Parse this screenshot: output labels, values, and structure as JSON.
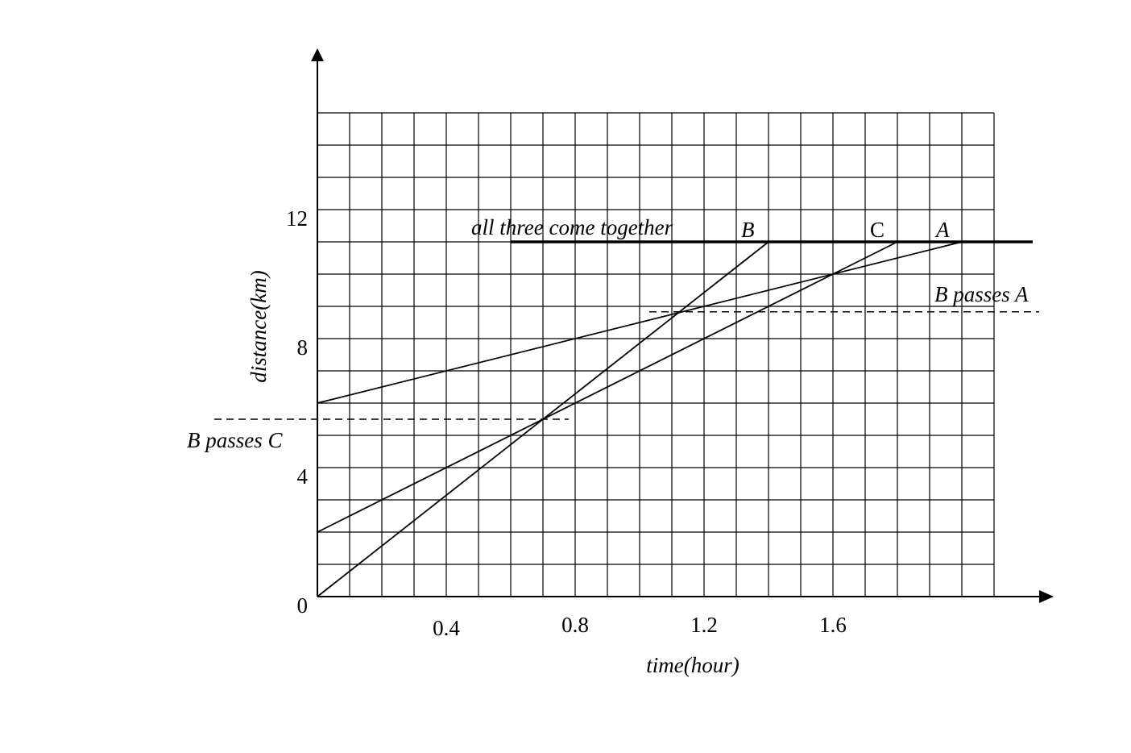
{
  "chart_data": {
    "type": "line",
    "xlabel": "time(hour)",
    "ylabel": "distance(km)",
    "xlim": [
      0,
      2.1
    ],
    "ylim": [
      0,
      15
    ],
    "grid": true,
    "grid_step": {
      "x": 0.1,
      "y": 1
    },
    "x_ticks": [
      {
        "value": 0.4,
        "label": "0.4"
      },
      {
        "value": 0.8,
        "label": "0.8"
      },
      {
        "value": 1.2,
        "label": "1.2"
      },
      {
        "value": 1.6,
        "label": "1.6"
      }
    ],
    "y_ticks": [
      {
        "value": 0,
        "label": "0"
      },
      {
        "value": 4,
        "label": "4"
      },
      {
        "value": 8,
        "label": "8"
      },
      {
        "value": 12,
        "label": "12"
      }
    ],
    "series": [
      {
        "name": "B",
        "x": [
          0,
          1.4
        ],
        "y": [
          0,
          11
        ]
      },
      {
        "name": "C",
        "x": [
          0,
          1.8
        ],
        "y": [
          2,
          11
        ]
      },
      {
        "name": "A",
        "x": [
          0,
          2.0
        ],
        "y": [
          6,
          11
        ]
      }
    ],
    "reference_lines": [
      {
        "label": "all three come together",
        "style": "solid-thick",
        "y": 11,
        "x": [
          0.6,
          2.22
        ]
      },
      {
        "label": "B passes A",
        "style": "dashed",
        "y": 8.83,
        "x": [
          1.03,
          2.24
        ]
      },
      {
        "label": "B passes C",
        "style": "dashed",
        "y": 5.5,
        "x": [
          -0.32,
          0.78
        ]
      }
    ],
    "line_color": "#000000"
  }
}
